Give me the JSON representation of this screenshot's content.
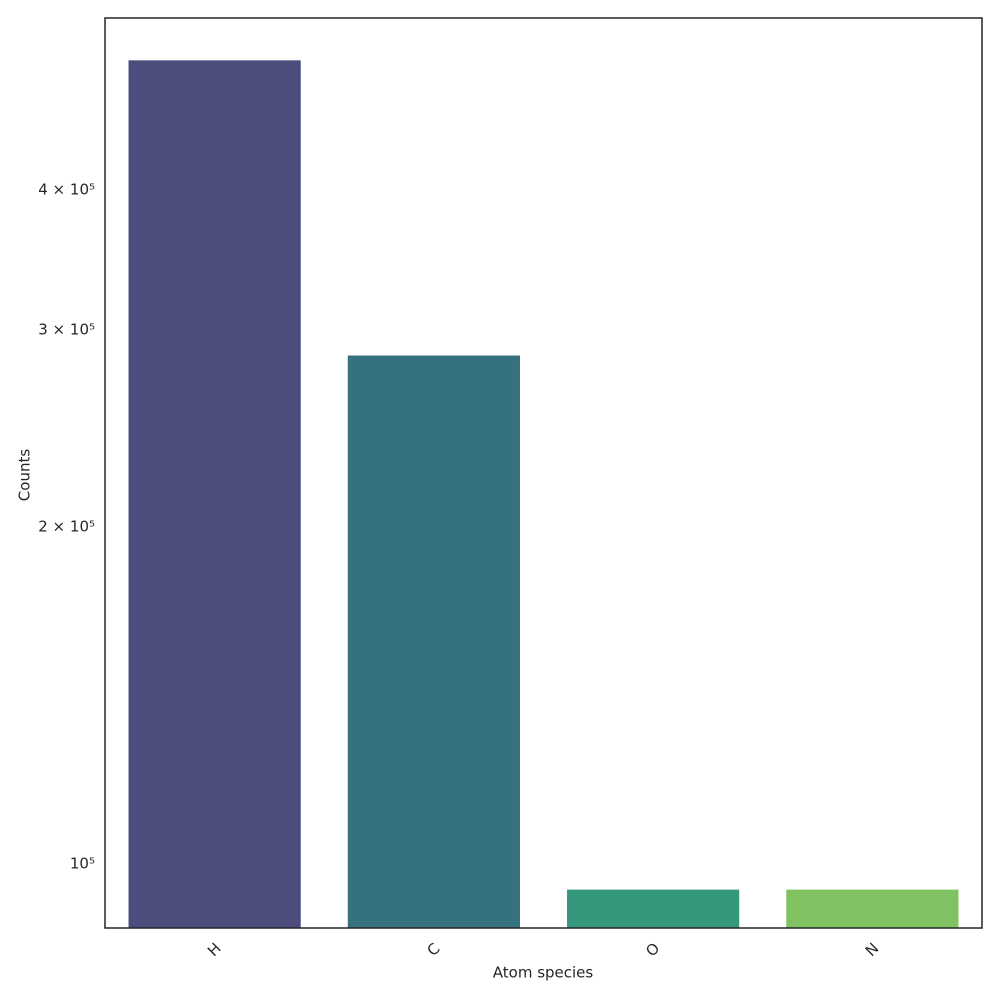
{
  "chart_data": {
    "type": "bar",
    "x_label": "Atom species",
    "y_label": "Counts",
    "categories": [
      "H",
      "C",
      "O",
      "N"
    ],
    "values": [
      523000,
      285000,
      95000,
      95000
    ],
    "colors": [
      "#4c4c7d",
      "#367180",
      "#35987d",
      "#80c262"
    ],
    "log_y": true,
    "ylim": [
      87700,
      570000
    ],
    "yticks": [
      {
        "value": 100000,
        "label": "10⁵"
      },
      {
        "value": 200000,
        "label": "2 × 10⁵"
      },
      {
        "value": 300000,
        "label": "3 × 10⁵"
      },
      {
        "value": 400000,
        "label": "4 × 10⁵"
      }
    ],
    "grid": false
  }
}
